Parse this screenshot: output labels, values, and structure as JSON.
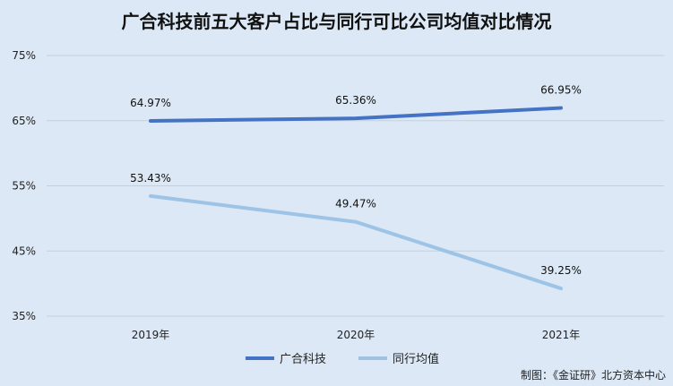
{
  "chart_data": {
    "type": "line",
    "title": "广合科技前五大客户占比与同行可比公司均值对比情况",
    "categories": [
      "2019年",
      "2020年",
      "2021年"
    ],
    "series": [
      {
        "name": "广合科技",
        "values": [
          64.97,
          65.36,
          66.95
        ],
        "labels": [
          "64.97%",
          "65.36%",
          "66.95%"
        ],
        "color": "#4472c4"
      },
      {
        "name": "同行均值",
        "values": [
          53.43,
          49.47,
          39.25
        ],
        "labels": [
          "53.43%",
          "49.47%",
          "39.25%"
        ],
        "color": "#9dc3e6"
      }
    ],
    "ylim": [
      35,
      75
    ],
    "yticks": [
      "35%",
      "45%",
      "55%",
      "65%",
      "75%"
    ],
    "grid": true,
    "legend": "bottom"
  },
  "source": "制图：《金证研》北方资本中心"
}
